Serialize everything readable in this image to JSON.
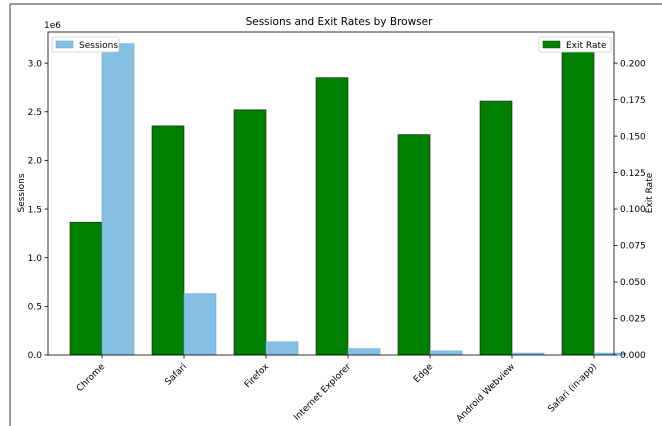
{
  "chart_data": {
    "type": "bar",
    "title": "Sessions and Exit Rates by Browser",
    "categories": [
      "Chrome",
      "Safari",
      "Firefox",
      "Internet Explorer",
      "Edge",
      "Android Webview",
      "Safari (in-app)"
    ],
    "series": [
      {
        "name": "Exit Rate",
        "axis": "right",
        "color": "#008000",
        "values": [
          0.091,
          0.157,
          0.168,
          0.19,
          0.151,
          0.174,
          0.213
        ]
      },
      {
        "name": "Sessions",
        "axis": "left",
        "color": "#85bfe1",
        "values": [
          3200000,
          630000,
          135000,
          65000,
          42000,
          20000,
          20000
        ]
      }
    ],
    "ylabel_left": "Sessions",
    "ylabel_right": "Exit Rate",
    "y_left_scale_label": "1e6",
    "ylim_left": [
      0,
      3.32
    ],
    "ylim_right": [
      0,
      0.2213
    ],
    "yticks_left": [
      "0.0",
      "0.5",
      "1.0",
      "1.5",
      "2.0",
      "2.5",
      "3.0"
    ],
    "yticks_right": [
      "0.000",
      "0.025",
      "0.050",
      "0.075",
      "0.100",
      "0.125",
      "0.150",
      "0.175",
      "0.200"
    ],
    "legend_left": {
      "label": "Sessions",
      "placement": "top-left"
    },
    "legend_right": {
      "label": "Exit Rate",
      "placement": "top-right"
    },
    "grid": false
  }
}
